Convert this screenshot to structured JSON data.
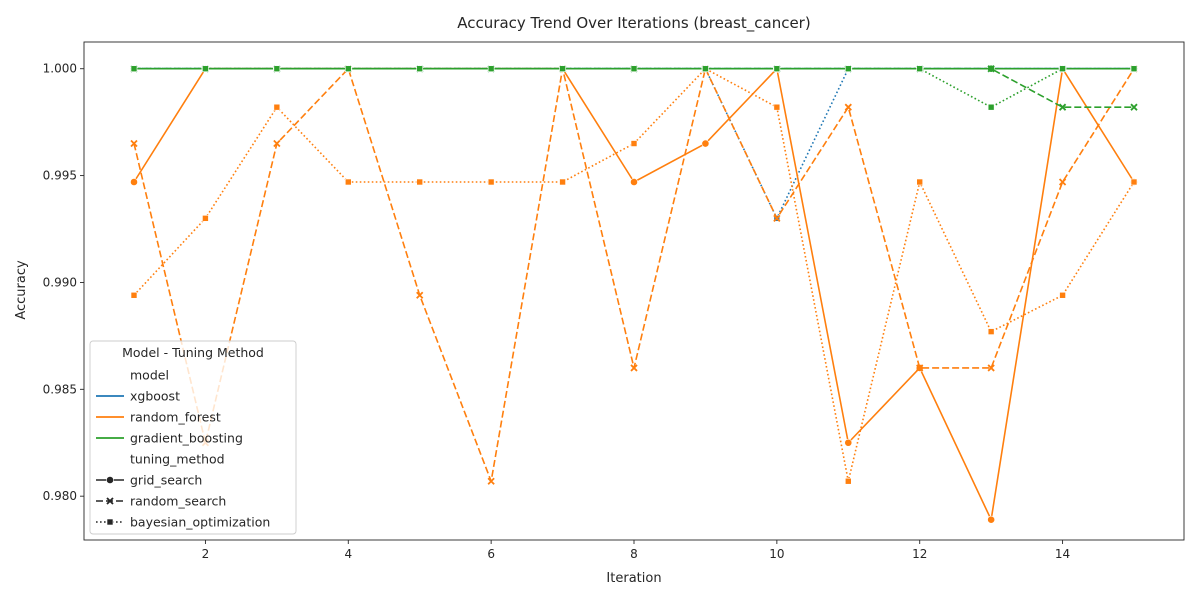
{
  "chart_data": {
    "type": "line",
    "title": "Accuracy Trend Over Iterations (breast_cancer)",
    "xlabel": "Iteration",
    "ylabel": "Accuracy",
    "xlim": [
      0.3,
      15.7
    ],
    "ylim": [
      0.97795,
      1.00125
    ],
    "xticks": [
      2,
      4,
      6,
      8,
      10,
      12,
      14
    ],
    "xtick_labels": [
      "2",
      "4",
      "6",
      "8",
      "10",
      "12",
      "14"
    ],
    "yticks": [
      0.98,
      0.985,
      0.99,
      0.995,
      1.0
    ],
    "ytick_labels": [
      "0.980",
      "0.985",
      "0.990",
      "0.995",
      "1.000"
    ],
    "grid": false,
    "legend": {
      "title": "Model - Tuning Method",
      "placement": "lower-left",
      "entries": [
        {
          "label": "model",
          "kind": "header"
        },
        {
          "label": "xgboost",
          "kind": "color",
          "color": "#1f77b4"
        },
        {
          "label": "random_forest",
          "kind": "color",
          "color": "#ff7f0e"
        },
        {
          "label": "gradient_boosting",
          "kind": "color",
          "color": "#2ca02c"
        },
        {
          "label": "tuning_method",
          "kind": "header"
        },
        {
          "label": "grid_search",
          "kind": "style",
          "dash": "solid",
          "marker": "circle"
        },
        {
          "label": "random_search",
          "kind": "style",
          "dash": "dashed",
          "marker": "x"
        },
        {
          "label": "bayesian_optimization",
          "kind": "style",
          "dash": "dotted",
          "marker": "square"
        }
      ]
    },
    "x": [
      1,
      2,
      3,
      4,
      5,
      6,
      7,
      8,
      9,
      10,
      11,
      12,
      13,
      14,
      15
    ],
    "series": [
      {
        "model": "xgboost",
        "method": "grid_search",
        "color": "#1f77b4",
        "dash": "solid",
        "marker": "circle",
        "values": [
          1,
          1,
          1,
          1,
          1,
          1,
          1,
          1,
          1,
          1,
          1,
          1,
          1,
          1,
          1
        ]
      },
      {
        "model": "xgboost",
        "method": "random_search",
        "color": "#1f77b4",
        "dash": "dashed",
        "marker": "x",
        "values": [
          1,
          1,
          1,
          1,
          1,
          1,
          1,
          1,
          1,
          1,
          1,
          1,
          1,
          1,
          1
        ]
      },
      {
        "model": "xgboost",
        "method": "bayesian_optimization",
        "color": "#1f77b4",
        "dash": "dotted",
        "marker": "square",
        "values": [
          1,
          1,
          1,
          1,
          1,
          1,
          1,
          1,
          1,
          0.993,
          1,
          1,
          1,
          1,
          1
        ]
      },
      {
        "model": "random_forest",
        "method": "grid_search",
        "color": "#ff7f0e",
        "dash": "solid",
        "marker": "circle",
        "values": [
          0.9947,
          1,
          1,
          1,
          1,
          1,
          1,
          0.9947,
          0.9965,
          1,
          0.9825,
          0.986,
          0.9789,
          1,
          0.9947
        ]
      },
      {
        "model": "random_forest",
        "method": "random_search",
        "color": "#ff7f0e",
        "dash": "dashed",
        "marker": "x",
        "values": [
          0.9965,
          0.9825,
          0.9965,
          1,
          0.9894,
          0.9807,
          1,
          0.986,
          1,
          0.993,
          0.9982,
          0.986,
          0.986,
          0.9947,
          1
        ]
      },
      {
        "model": "random_forest",
        "method": "bayesian_optimization",
        "color": "#ff7f0e",
        "dash": "dotted",
        "marker": "square",
        "values": [
          0.9894,
          0.993,
          0.9982,
          0.9947,
          0.9947,
          0.9947,
          0.9947,
          0.9965,
          1,
          0.9982,
          0.9807,
          0.9947,
          0.9877,
          0.9894,
          0.9947
        ]
      },
      {
        "model": "gradient_boosting",
        "method": "grid_search",
        "color": "#2ca02c",
        "dash": "solid",
        "marker": "circle",
        "values": [
          1,
          1,
          1,
          1,
          1,
          1,
          1,
          1,
          1,
          1,
          1,
          1,
          1,
          1,
          1
        ]
      },
      {
        "model": "gradient_boosting",
        "method": "random_search",
        "color": "#2ca02c",
        "dash": "dashed",
        "marker": "x",
        "values": [
          1,
          1,
          1,
          1,
          1,
          1,
          1,
          1,
          1,
          1,
          1,
          1,
          1,
          0.9982,
          0.9982
        ]
      },
      {
        "model": "gradient_boosting",
        "method": "bayesian_optimization",
        "color": "#2ca02c",
        "dash": "dotted",
        "marker": "square",
        "values": [
          1,
          1,
          1,
          1,
          1,
          1,
          1,
          1,
          1,
          1,
          1,
          1,
          0.9982,
          1,
          1
        ]
      }
    ]
  }
}
